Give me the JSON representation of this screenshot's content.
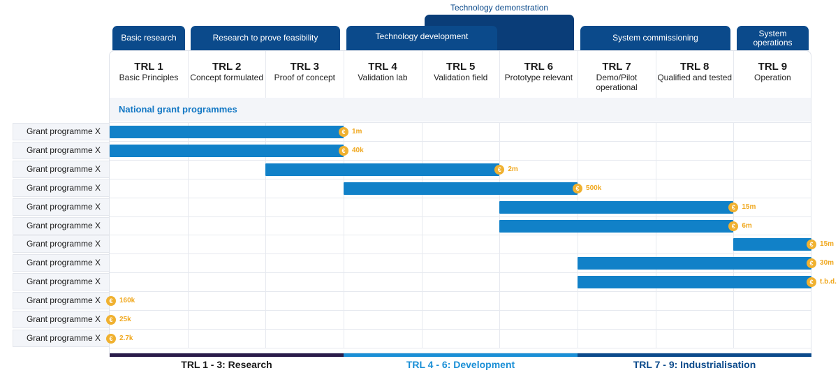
{
  "phases": {
    "basic_research": "Basic research",
    "feasibility": "Research to prove feasibility",
    "tech_development": "Technology development",
    "tech_demonstration": "Technology demonstration",
    "system_commissioning": "System commissioning",
    "system_operations": "System operations"
  },
  "trl_levels": [
    {
      "code": "TRL 1",
      "desc": "Basic Principles"
    },
    {
      "code": "TRL 2",
      "desc": "Concept formulated"
    },
    {
      "code": "TRL 3",
      "desc": "Proof of concept"
    },
    {
      "code": "TRL 4",
      "desc": "Validation lab"
    },
    {
      "code": "TRL 5",
      "desc": "Validation field"
    },
    {
      "code": "TRL 6",
      "desc": "Prototype relevant"
    },
    {
      "code": "TRL 7",
      "desc": "Demo/Pilot operational"
    },
    {
      "code": "TRL 8",
      "desc": "Qualified and tested"
    },
    {
      "code": "TRL 9",
      "desc": "Operation"
    }
  ],
  "section_title": "National grant programmes",
  "currency_symbol": "€",
  "colors": {
    "bar": "#1181c8",
    "coin": "#f0b130",
    "research": "#2a1c4a",
    "development": "#1a8fd6",
    "industrialisation": "#0b4a8b"
  },
  "chart_data": {
    "type": "gantt",
    "x_categories": [
      "TRL 1",
      "TRL 2",
      "TRL 3",
      "TRL 4",
      "TRL 5",
      "TRL 6",
      "TRL 7",
      "TRL 8",
      "TRL 9"
    ],
    "rows": [
      {
        "label": "Grant programme X",
        "start": 1,
        "end": 3,
        "amount": "1m"
      },
      {
        "label": "Grant programme X",
        "start": 1,
        "end": 3,
        "amount": "40k"
      },
      {
        "label": "Grant programme X",
        "start": 3,
        "end": 5,
        "amount": "2m"
      },
      {
        "label": "Grant programme X",
        "start": 4,
        "end": 6,
        "amount": "500k"
      },
      {
        "label": "Grant programme X",
        "start": 6,
        "end": 8,
        "amount": "15m"
      },
      {
        "label": "Grant programme X",
        "start": 6,
        "end": 8,
        "amount": "6m"
      },
      {
        "label": "Grant programme X",
        "start": 9,
        "end": 9,
        "amount": "15m"
      },
      {
        "label": "Grant programme X",
        "start": 7,
        "end": 9,
        "amount": "30m"
      },
      {
        "label": "Grant programme X",
        "start": 7,
        "end": 9,
        "amount": "t.b.d."
      },
      {
        "label": "Grant programme X",
        "start": null,
        "end": null,
        "amount": "160k"
      },
      {
        "label": "Grant programme X",
        "start": null,
        "end": null,
        "amount": "25k"
      },
      {
        "label": "Grant programme X",
        "start": null,
        "end": null,
        "amount": "2.7k"
      }
    ],
    "groups": [
      {
        "label": "TRL 1 - 3: Research",
        "start": 1,
        "end": 3
      },
      {
        "label": "TRL 4 - 6: Development",
        "start": 4,
        "end": 6
      },
      {
        "label": "TRL 7 - 9: Industrialisation",
        "start": 7,
        "end": 9
      }
    ]
  }
}
